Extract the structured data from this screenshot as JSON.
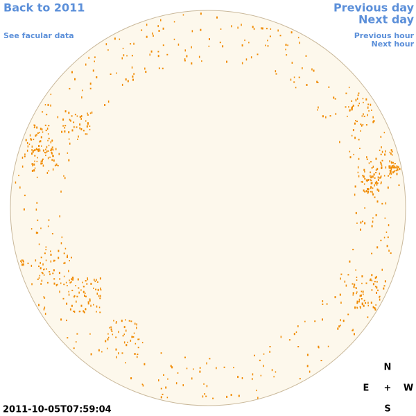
{
  "nav": {
    "back": "Back to 2011",
    "facular": "See facular data",
    "prev_day": "Previous day",
    "next_day": "Next day",
    "prev_hour": "Previous hour",
    "next_hour": "Next hour"
  },
  "timestamp": "2011-10-05T07:59:04",
  "compass": {
    "north": "N",
    "east": "E",
    "center": "+",
    "west": "W",
    "south": "S"
  }
}
